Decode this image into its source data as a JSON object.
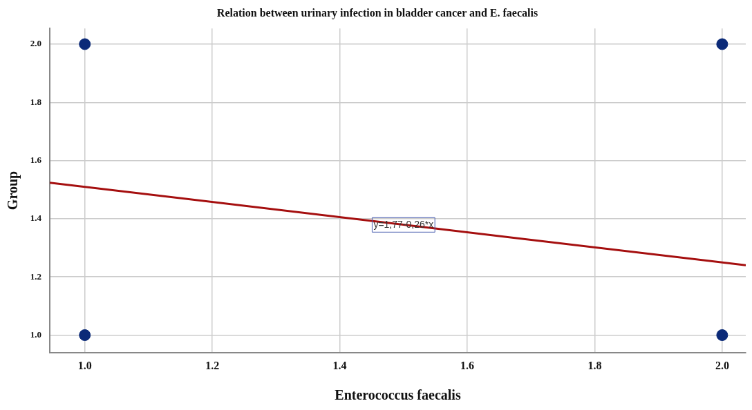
{
  "chart_data": {
    "type": "scatter",
    "title": "Relation between urinary infection in bladder cancer and E. faecalis",
    "xlabel": "Enterococcus faecalis",
    "ylabel": "Group",
    "series": [
      {
        "color": "#0b2a78",
        "marker": "circle",
        "x": [
          1,
          1,
          2,
          2
        ],
        "values": [
          1,
          2,
          1,
          2
        ]
      },
      {
        "type": "line",
        "color": "#a50f0f",
        "marker": "none",
        "x": [
          0.945,
          2.037
        ],
        "values": [
          1.524,
          1.24
        ]
      }
    ],
    "annotations": [
      {
        "text": "y=1,77-0,26*x",
        "x": 1.5,
        "y": 1.38
      }
    ],
    "xlim": [
      0.945,
      2.037
    ],
    "ylim": [
      0.94,
      2.054
    ],
    "xticks": [
      {
        "value": 1,
        "label": "1.0"
      },
      1.2,
      1.4,
      1.6,
      1.8,
      {
        "value": 2,
        "label": "2.0"
      }
    ],
    "yticks": [
      {
        "value": 1,
        "label": "1.0"
      },
      1.2,
      1.4,
      1.6,
      1.8,
      {
        "value": 2,
        "label": "2.0"
      }
    ],
    "grid": true
  }
}
